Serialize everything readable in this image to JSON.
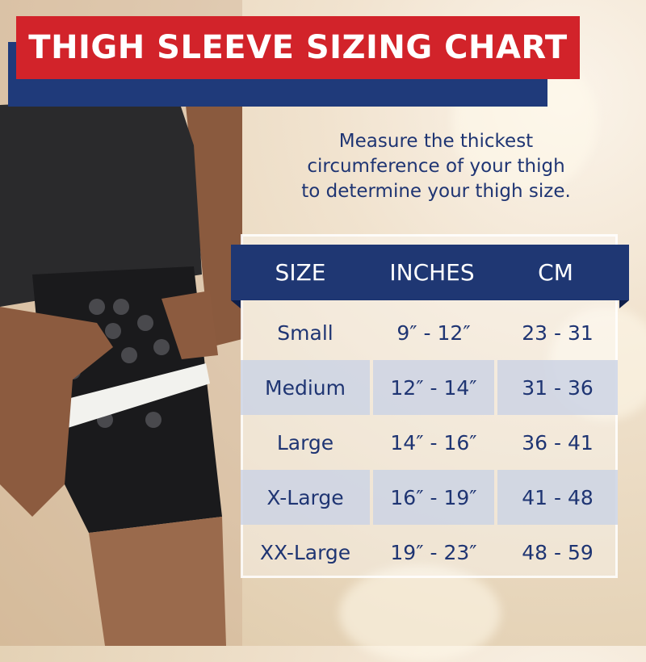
{
  "title": "THIGH SLEEVE SIZING CHART",
  "instructions": [
    "Measure the thickest",
    "circumference of your thigh",
    "to determine your thigh size."
  ],
  "table": {
    "headers": [
      "SIZE",
      "INCHES",
      "CM"
    ],
    "rows": [
      {
        "size": "Small",
        "inches": "9″ - 12″",
        "cm": "23 - 31"
      },
      {
        "size": "Medium",
        "inches": "12″ - 14″",
        "cm": "31 - 36"
      },
      {
        "size": "Large",
        "inches": "14″ - 16″",
        "cm": "36 - 41"
      },
      {
        "size": "X-Large",
        "inches": "16″ - 19″",
        "cm": "41 - 48"
      },
      {
        "size": "XX-Large",
        "inches": "19″ - 23″",
        "cm": "48 - 59"
      }
    ]
  },
  "colors": {
    "banner": "#d2232a",
    "navy": "#1f3773",
    "text": "#1f3573"
  }
}
